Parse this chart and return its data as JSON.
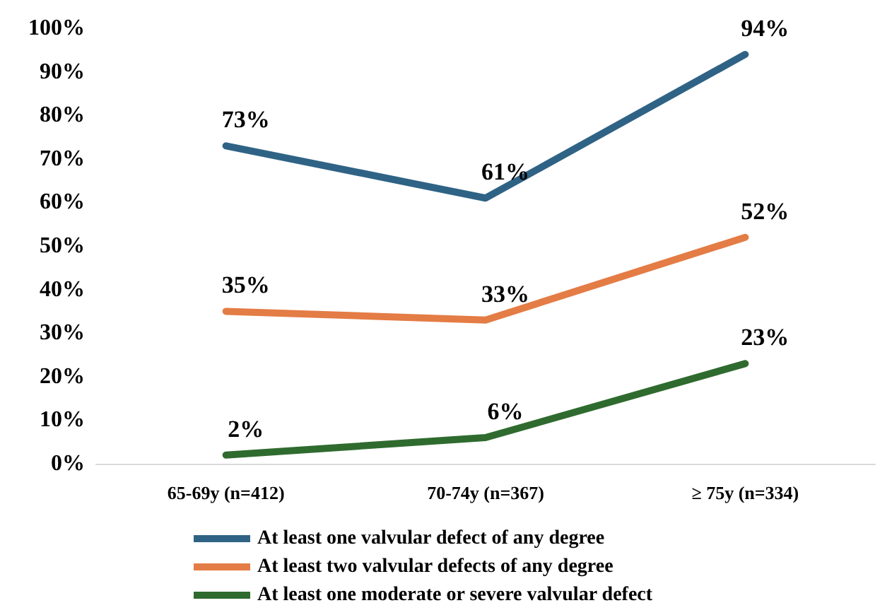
{
  "chart_data": {
    "type": "line",
    "categories": [
      "65-69y (n=412)",
      "70-74y (n=367)",
      "≥ 75y (n=334)"
    ],
    "series": [
      {
        "name": "At least one valvular defect of any degree",
        "color": "#2f6385",
        "values": [
          73,
          61,
          94
        ],
        "value_labels": [
          "73%",
          "61%",
          "94%"
        ]
      },
      {
        "name": "At least two valvular defects of any degree",
        "color": "#e47c45",
        "values": [
          35,
          33,
          52
        ],
        "value_labels": [
          "35%",
          "33%",
          "52%"
        ]
      },
      {
        "name": "At least one moderate or severe valvular defect",
        "color": "#2f6b2f",
        "values": [
          2,
          6,
          23
        ],
        "value_labels": [
          "2%",
          "6%",
          "23%"
        ]
      }
    ],
    "ylim": [
      0,
      100
    ],
    "yticks": [
      {
        "value": 0,
        "label": "0%"
      },
      {
        "value": 10,
        "label": "10%"
      },
      {
        "value": 20,
        "label": "20%"
      },
      {
        "value": 30,
        "label": "30%"
      },
      {
        "value": 40,
        "label": "40%"
      },
      {
        "value": 50,
        "label": "50%"
      },
      {
        "value": 60,
        "label": "60%"
      },
      {
        "value": 70,
        "label": "70%"
      },
      {
        "value": 80,
        "label": "80%"
      },
      {
        "value": 90,
        "label": "90%"
      },
      {
        "value": 100,
        "label": "100%"
      }
    ],
    "grid": false,
    "legend": "bottom",
    "marker": "none",
    "line_style": "solid"
  }
}
